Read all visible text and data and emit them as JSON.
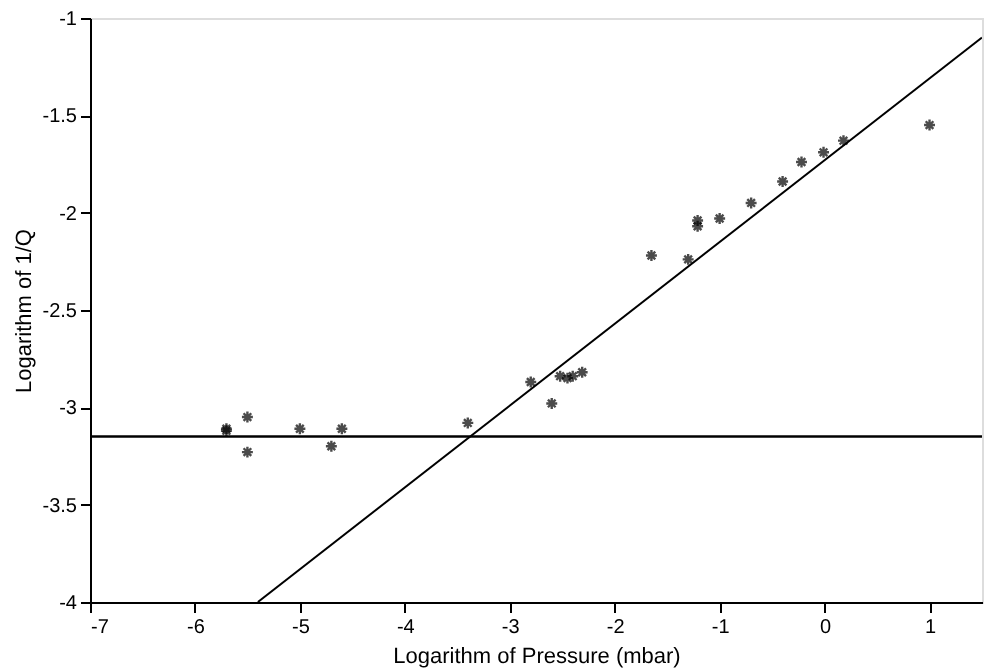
{
  "chart_data": {
    "type": "scatter",
    "xlabel": "Logarithm of Pressure (mbar)",
    "ylabel": "Logarithm of 1/Q",
    "xlim": [
      -7,
      1.5
    ],
    "ylim": [
      -4,
      -1
    ],
    "xticks": [
      -7,
      -6,
      -5,
      -4,
      -3,
      -2,
      -1,
      0,
      1
    ],
    "yticks": [
      -4,
      -3.5,
      -3,
      -2.5,
      -2,
      -1.5,
      -1
    ],
    "grid": false,
    "series": [
      {
        "color": "#000000",
        "marker": "cross",
        "x": [
          -5.7,
          -5.7,
          -5.5,
          -5.5,
          -5.0,
          -4.7,
          -4.6,
          -3.4,
          -2.8,
          -2.6,
          -2.52,
          -2.45,
          -2.4,
          -2.31,
          -1.65,
          -1.3,
          -1.21,
          -1.21,
          -1.0,
          -0.7,
          -0.4,
          -0.22,
          -0.01,
          0.18,
          1.0
        ],
        "values": [
          -3.11,
          -3.12,
          -3.05,
          -3.23,
          -3.11,
          -3.2,
          -3.11,
          -3.08,
          -2.87,
          -2.98,
          -2.84,
          -2.85,
          -2.84,
          -2.82,
          -2.22,
          -2.24,
          -2.04,
          -2.07,
          -2.03,
          -1.95,
          -1.84,
          -1.74,
          -1.69,
          -1.63,
          -1.55
        ]
      },
      {
        "type": "line",
        "color": "#000000",
        "x": [
          -5.4,
          1.5
        ],
        "values": [
          -4,
          -1.1
        ],
        "line_style": "solid",
        "marker": "none"
      }
    ],
    "ref_lines": [
      {
        "axis": "y",
        "value": -3.15,
        "color": "#000000"
      }
    ]
  }
}
